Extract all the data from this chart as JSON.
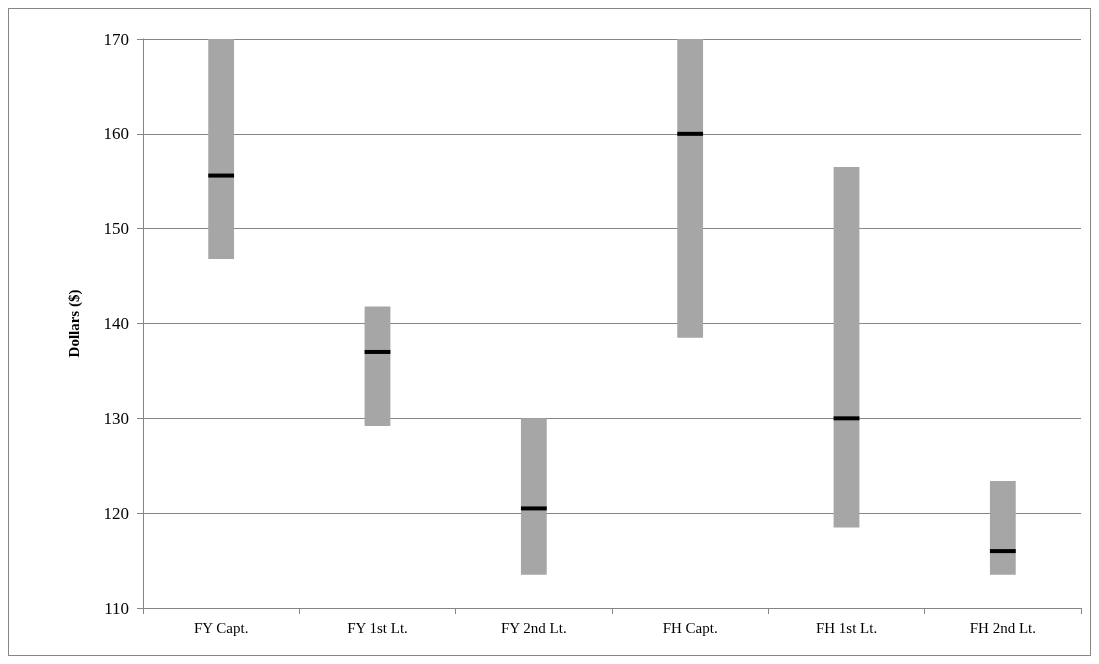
{
  "chart_data": {
    "type": "box",
    "ylabel": "Dollars ($)",
    "categories": [
      "FY Capt.",
      "FY 1st Lt.",
      "FY 2nd Lt.",
      "FH Capt.",
      "FH 1st Lt.",
      "FH 2nd Lt."
    ],
    "series": [
      {
        "color": "#a6a6a6",
        "boxes": [
          {
            "low": 146.8,
            "q1": 146.8,
            "median": 155.6,
            "q3": 170,
            "high": 170
          },
          {
            "low": 129.2,
            "q1": 129.2,
            "median": 137,
            "q3": 141.8,
            "high": 141.8
          },
          {
            "low": 113.5,
            "q1": 113.5,
            "median": 120.5,
            "q3": 130,
            "high": 130
          },
          {
            "low": 138.5,
            "q1": 138.5,
            "median": 160,
            "q3": 170,
            "high": 170
          },
          {
            "low": 118.5,
            "q1": 118.5,
            "median": 130,
            "q3": 156.5,
            "high": 156.5
          },
          {
            "low": 113.5,
            "q1": 113.5,
            "median": 116,
            "q3": 123.4,
            "high": 123.4
          }
        ]
      }
    ],
    "ylim": [
      110,
      170
    ],
    "yticks": [
      110,
      120,
      130,
      140,
      150,
      160,
      170
    ],
    "grid": "y"
  }
}
